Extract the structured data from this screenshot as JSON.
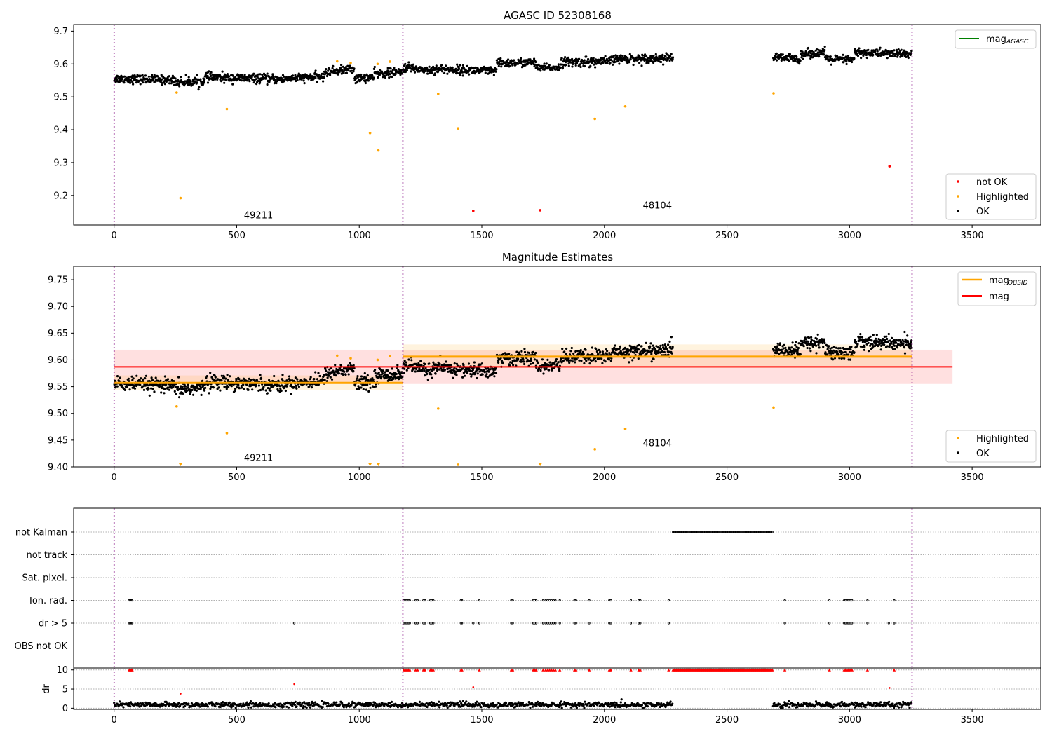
{
  "chart_data": [
    {
      "type": "scatter",
      "title": "AGASC ID 52308168",
      "xlim": [
        -165,
        3780
      ],
      "ylim": [
        9.11,
        9.72
      ],
      "xticks": [
        0,
        500,
        1000,
        1500,
        2000,
        2500,
        3000,
        3500
      ],
      "yticks": [
        9.2,
        9.3,
        9.4,
        9.5,
        9.6,
        9.7
      ],
      "ytick_labels": [
        "9.2",
        "9.3",
        "9.4",
        "9.5",
        "9.6",
        "9.7"
      ],
      "obsid_boundaries": [
        0,
        1178,
        3255
      ],
      "obsid_labels": [
        {
          "text": "49211",
          "x": 589,
          "y": 9.13
        },
        {
          "text": "48104",
          "x": 2216,
          "y": 9.16
        }
      ],
      "line_legend": {
        "label": "mag",
        "sub": "AGASC",
        "color": "#008000"
      },
      "series": [
        {
          "name": "not OK",
          "color": "#ff0000",
          "points": [
            [
              1465,
              9.153
            ],
            [
              1738,
              9.155
            ],
            [
              3163,
              9.289
            ]
          ]
        },
        {
          "name": "Highlighted",
          "color": "#ffa500",
          "points": [
            [
              255,
              9.513
            ],
            [
              271,
              9.192
            ],
            [
              460,
              9.463
            ],
            [
              910,
              9.608
            ],
            [
              965,
              9.603
            ],
            [
              1044,
              9.39
            ],
            [
              1078,
              9.337
            ],
            [
              1075,
              9.6
            ],
            [
              1125,
              9.607
            ],
            [
              1322,
              9.509
            ],
            [
              1403,
              9.404
            ],
            [
              1961,
              9.433
            ],
            [
              2085,
              9.471
            ],
            [
              2690,
              9.511
            ]
          ]
        },
        {
          "name": "OK",
          "color": "#000000",
          "segments": [
            {
              "x0": 0,
              "x1": 250,
              "y0": 9.556,
              "y1": 9.551,
              "spread": 0.012,
              "n": 170
            },
            {
              "x0": 250,
              "x1": 370,
              "y0": 9.545,
              "y1": 9.548,
              "spread": 0.013,
              "n": 80
            },
            {
              "x0": 370,
              "x1": 700,
              "y0": 9.56,
              "y1": 9.553,
              "spread": 0.012,
              "n": 220
            },
            {
              "x0": 700,
              "x1": 860,
              "y0": 9.556,
              "y1": 9.562,
              "spread": 0.011,
              "n": 110
            },
            {
              "x0": 860,
              "x1": 980,
              "y0": 9.575,
              "y1": 9.585,
              "spread": 0.012,
              "n": 80
            },
            {
              "x0": 980,
              "x1": 1060,
              "y0": 9.555,
              "y1": 9.56,
              "spread": 0.012,
              "n": 55
            },
            {
              "x0": 1060,
              "x1": 1178,
              "y0": 9.57,
              "y1": 9.575,
              "spread": 0.012,
              "n": 80
            },
            {
              "x0": 1178,
              "x1": 1300,
              "y0": 9.59,
              "y1": 9.58,
              "spread": 0.012,
              "n": 80
            },
            {
              "x0": 1300,
              "x1": 1560,
              "y0": 9.585,
              "y1": 9.578,
              "spread": 0.012,
              "n": 175
            },
            {
              "x0": 1560,
              "x1": 1720,
              "y0": 9.602,
              "y1": 9.605,
              "spread": 0.012,
              "n": 110
            },
            {
              "x0": 1720,
              "x1": 1820,
              "y0": 9.587,
              "y1": 9.59,
              "spread": 0.01,
              "n": 65
            },
            {
              "x0": 1820,
              "x1": 2030,
              "y0": 9.605,
              "y1": 9.608,
              "spread": 0.013,
              "n": 140
            },
            {
              "x0": 2030,
              "x1": 2280,
              "y0": 9.615,
              "y1": 9.618,
              "spread": 0.012,
              "n": 170
            },
            {
              "x0": 2688,
              "x1": 2800,
              "y0": 9.62,
              "y1": 9.615,
              "spread": 0.012,
              "n": 75
            },
            {
              "x0": 2800,
              "x1": 2900,
              "y0": 9.63,
              "y1": 9.635,
              "spread": 0.012,
              "n": 70
            },
            {
              "x0": 2900,
              "x1": 3020,
              "y0": 9.615,
              "y1": 9.612,
              "spread": 0.012,
              "n": 80
            },
            {
              "x0": 3020,
              "x1": 3255,
              "y0": 9.635,
              "y1": 9.63,
              "spread": 0.012,
              "n": 160
            }
          ]
        }
      ],
      "legend": [
        "not OK",
        "Highlighted",
        "OK"
      ],
      "legend_placement": "lower-right"
    },
    {
      "type": "scatter",
      "title": "Magnitude Estimates",
      "xlim": [
        -165,
        3780
      ],
      "ylim": [
        9.4,
        9.775
      ],
      "xticks": [
        0,
        500,
        1000,
        1500,
        2000,
        2500,
        3000,
        3500
      ],
      "yticks": [
        9.4,
        9.45,
        9.5,
        9.55,
        9.6,
        9.65,
        9.7,
        9.75
      ],
      "ytick_labels": [
        "9.40",
        "9.45",
        "9.50",
        "9.55",
        "9.60",
        "9.65",
        "9.70",
        "9.75"
      ],
      "obsid_boundaries": [
        0,
        1178,
        3255
      ],
      "obsid_labels": [
        {
          "text": "49211",
          "x": 589,
          "y": 9.411
        },
        {
          "text": "48104",
          "x": 2216,
          "y": 9.439
        }
      ],
      "line_legend": [
        {
          "label": "mag",
          "sub": "OBSID",
          "color": "#ffa500"
        },
        {
          "label": "mag",
          "sub": "",
          "color": "#ff0000"
        }
      ],
      "mag": {
        "value": 9.587,
        "band": [
          9.555,
          9.619
        ],
        "x0": 0,
        "x1": 3420,
        "color": "#ff0000"
      },
      "mag_obsid": [
        {
          "x0": 0,
          "x1": 1178,
          "value": 9.557,
          "band": [
            9.543,
            9.571
          ]
        },
        {
          "x0": 1178,
          "x1": 3255,
          "value": 9.606,
          "band": [
            9.585,
            9.629
          ]
        }
      ],
      "series": [
        {
          "name": "Highlighted",
          "color": "#ffa500",
          "points": [
            [
              255,
              9.513
            ],
            [
              460,
              9.463
            ],
            [
              910,
              9.608
            ],
            [
              965,
              9.603
            ],
            [
              1075,
              9.6
            ],
            [
              1125,
              9.607
            ],
            [
              1322,
              9.509
            ],
            [
              1403,
              9.404
            ],
            [
              1961,
              9.433
            ],
            [
              2085,
              9.471
            ],
            [
              2690,
              9.511
            ]
          ]
        },
        {
          "name": "Highlighted (clipped)",
          "color": "#ffa500",
          "points": [
            [
              271,
              9.4
            ],
            [
              1044,
              9.4
            ],
            [
              1078,
              9.4
            ],
            [
              1738,
              9.4
            ]
          ]
        },
        {
          "name": "OK",
          "color": "#000000",
          "segments": [
            {
              "x0": 0,
              "x1": 250,
              "y0": 9.556,
              "y1": 9.551,
              "spread": 0.012,
              "n": 170
            },
            {
              "x0": 250,
              "x1": 370,
              "y0": 9.545,
              "y1": 9.548,
              "spread": 0.013,
              "n": 80
            },
            {
              "x0": 370,
              "x1": 700,
              "y0": 9.56,
              "y1": 9.553,
              "spread": 0.012,
              "n": 220
            },
            {
              "x0": 700,
              "x1": 860,
              "y0": 9.556,
              "y1": 9.562,
              "spread": 0.011,
              "n": 110
            },
            {
              "x0": 860,
              "x1": 980,
              "y0": 9.575,
              "y1": 9.585,
              "spread": 0.012,
              "n": 80
            },
            {
              "x0": 980,
              "x1": 1060,
              "y0": 9.555,
              "y1": 9.56,
              "spread": 0.012,
              "n": 55
            },
            {
              "x0": 1060,
              "x1": 1178,
              "y0": 9.57,
              "y1": 9.575,
              "spread": 0.012,
              "n": 80
            },
            {
              "x0": 1178,
              "x1": 1300,
              "y0": 9.59,
              "y1": 9.58,
              "spread": 0.012,
              "n": 80
            },
            {
              "x0": 1300,
              "x1": 1560,
              "y0": 9.585,
              "y1": 9.578,
              "spread": 0.012,
              "n": 175
            },
            {
              "x0": 1560,
              "x1": 1720,
              "y0": 9.602,
              "y1": 9.605,
              "spread": 0.012,
              "n": 110
            },
            {
              "x0": 1720,
              "x1": 1820,
              "y0": 9.587,
              "y1": 9.59,
              "spread": 0.01,
              "n": 65
            },
            {
              "x0": 1820,
              "x1": 2030,
              "y0": 9.605,
              "y1": 9.608,
              "spread": 0.013,
              "n": 140
            },
            {
              "x0": 2030,
              "x1": 2280,
              "y0": 9.615,
              "y1": 9.618,
              "spread": 0.012,
              "n": 170
            },
            {
              "x0": 2688,
              "x1": 2800,
              "y0": 9.62,
              "y1": 9.615,
              "spread": 0.012,
              "n": 75
            },
            {
              "x0": 2800,
              "x1": 2900,
              "y0": 9.63,
              "y1": 9.635,
              "spread": 0.012,
              "n": 70
            },
            {
              "x0": 2900,
              "x1": 3020,
              "y0": 9.615,
              "y1": 9.612,
              "spread": 0.012,
              "n": 80
            },
            {
              "x0": 3020,
              "x1": 3255,
              "y0": 9.635,
              "y1": 9.63,
              "spread": 0.012,
              "n": 160
            }
          ]
        }
      ],
      "legend": [
        "Highlighted",
        "OK"
      ],
      "legend_placement": "lower-right"
    },
    {
      "type": "scatter",
      "title": "",
      "xlim": [
        -165,
        3780
      ],
      "categories": [
        "not Kalman",
        "not track",
        "Sat. pixel.",
        "Ion. rad.",
        "dr > 5",
        "OBS not OK"
      ],
      "obsid_boundaries": [
        0,
        1178,
        3255
      ],
      "flags": {
        "not Kalman": {
          "ranges": [
            [
              2280,
              2688
            ]
          ],
          "points": []
        },
        "not track": {
          "ranges": [],
          "points": []
        },
        "Sat. pixel.": {
          "ranges": [],
          "points": []
        },
        "Ion. rad.": {
          "ranges": [],
          "points": [
            62,
            66,
            70,
            74,
            1182,
            1188,
            1194,
            1200,
            1206,
            1230,
            1238,
            1262,
            1268,
            1290,
            1296,
            1302,
            1415,
            1419,
            1490,
            1620,
            1626,
            1710,
            1716,
            1722,
            1750,
            1760,
            1768,
            1776,
            1784,
            1792,
            1800,
            1818,
            1878,
            1884,
            1938,
            2020,
            2026,
            2108,
            2140,
            2146,
            2262,
            2736,
            2918,
            2978,
            2984,
            2990,
            2996,
            3002,
            3010,
            3073,
            3182
          ]
        },
        "dr > 5": {
          "ranges": [],
          "points": [
            62,
            66,
            70,
            74,
            735,
            1182,
            1188,
            1194,
            1200,
            1206,
            1230,
            1238,
            1262,
            1268,
            1290,
            1296,
            1302,
            1415,
            1419,
            1465,
            1490,
            1620,
            1626,
            1710,
            1716,
            1722,
            1750,
            1760,
            1768,
            1776,
            1784,
            1792,
            1800,
            1818,
            1878,
            1884,
            1938,
            2020,
            2026,
            2108,
            2140,
            2146,
            2262,
            2736,
            2918,
            2978,
            2984,
            2990,
            2996,
            3002,
            3010,
            3073,
            3160,
            3182
          ]
        },
        "OBS not OK": {
          "ranges": [],
          "points": []
        }
      }
    },
    {
      "type": "scatter",
      "title": "",
      "xlim": [
        -165,
        3780
      ],
      "ylim": [
        -0.3,
        10.5
      ],
      "yticks": [
        0,
        5,
        10
      ],
      "ytick_labels": [
        "0",
        "5",
        "10"
      ],
      "ylabel": "dr",
      "obsid_boundaries": [
        0,
        1178,
        3255
      ],
      "dr_segments": [
        {
          "x0": 0,
          "x1": 2280,
          "base": 0.9,
          "spread": 0.55,
          "n": 900
        },
        {
          "x0": 2688,
          "x1": 3255,
          "base": 0.9,
          "spread": 0.55,
          "n": 230
        }
      ],
      "dr_red_points": [
        [
          271,
          3.8
        ],
        [
          735,
          6.3
        ],
        [
          1465,
          5.5
        ],
        [
          3163,
          5.3
        ]
      ],
      "dr_clipped": {
        "value": 10,
        "ranges": [
          [
            2280,
            2688
          ]
        ],
        "points": [
          62,
          66,
          70,
          74,
          1182,
          1188,
          1194,
          1200,
          1206,
          1230,
          1238,
          1262,
          1268,
          1290,
          1296,
          1302,
          1415,
          1419,
          1490,
          1620,
          1626,
          1710,
          1716,
          1722,
          1750,
          1760,
          1768,
          1776,
          1784,
          1792,
          1800,
          1818,
          1878,
          1884,
          1938,
          2020,
          2026,
          2108,
          2140,
          2146,
          2262,
          2736,
          2918,
          2978,
          2984,
          2990,
          2996,
          3002,
          3010,
          3073,
          3182
        ]
      }
    }
  ]
}
